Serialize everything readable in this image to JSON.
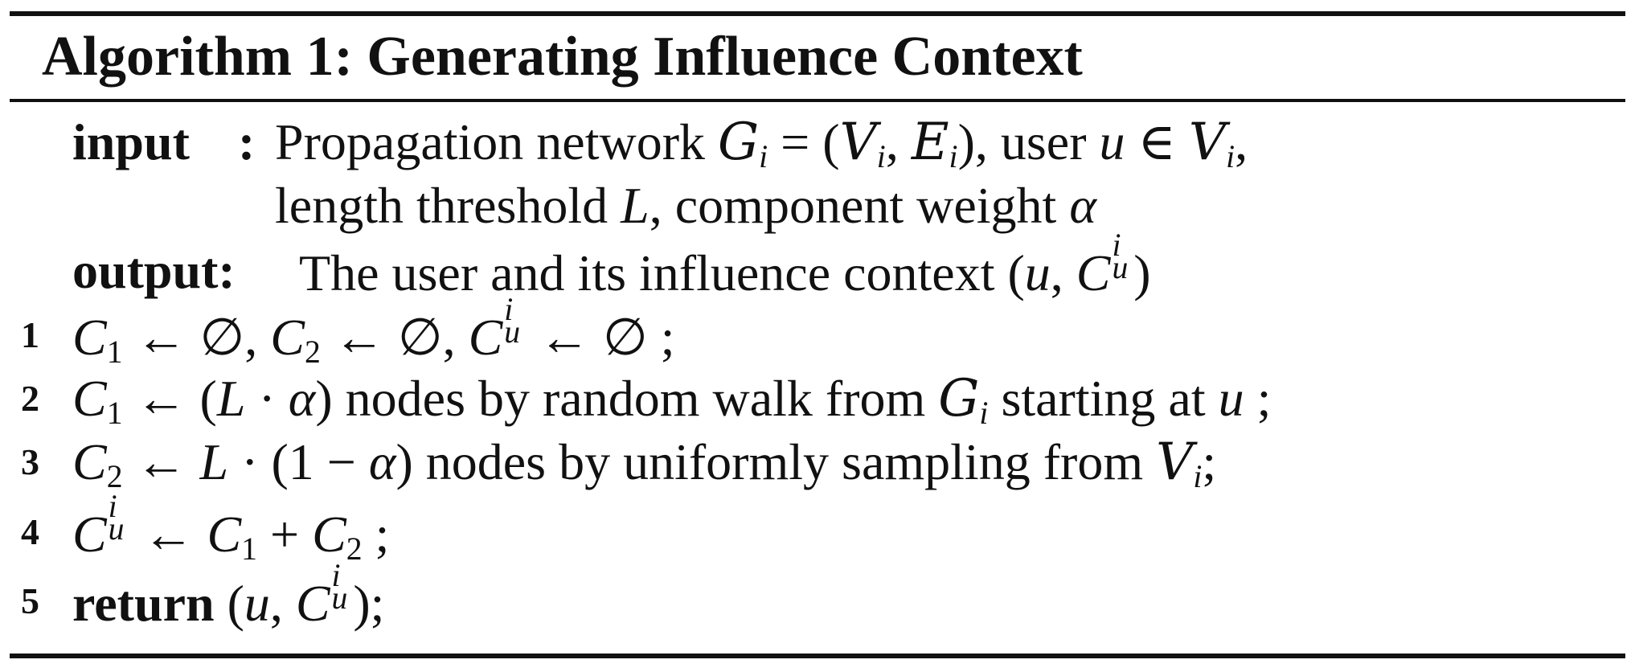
{
  "algorithm": {
    "title": "Algorithm 1: Generating Influence Context",
    "input_label": "input",
    "input_colon": ":",
    "input_line1_text": "Propagation network",
    "input_line1_graph": "G",
    "input_line1_sub_i": "i",
    "input_line1_eq": "= (",
    "input_line1_V": "V",
    "input_line1_comma": ",",
    "input_line1_E": "E",
    "input_line1_close": "), user",
    "input_line1_u": "u",
    "input_line1_in": "∈",
    "input_line1_end": ",",
    "input_line2_a": "length threshold",
    "input_line2_L": "L",
    "input_line2_b": ", component weight",
    "input_line2_alpha": "α",
    "output_label": "output:",
    "output_text": "The user and its influence context",
    "output_open": "(",
    "output_u": "u",
    "output_C": "C",
    "output_sup": "i",
    "output_sub": "u",
    "output_close": ")",
    "steps": [
      {
        "no": "1"
      },
      {
        "no": "2"
      },
      {
        "no": "3"
      },
      {
        "no": "4"
      },
      {
        "no": "5"
      }
    ],
    "step1": {
      "C": "C",
      "one": "1",
      "two": "2",
      "arrow": "←",
      "empty": "∅",
      "sep": ",",
      "i": "i",
      "u": "u",
      "end": ";"
    },
    "step2": {
      "C": "C",
      "one": "1",
      "arrow": "←",
      "open": "(",
      "L": "L",
      "dot": "·",
      "alpha": "α",
      "close": ")",
      "text_a": "nodes by random walk from",
      "G": "G",
      "i": "i",
      "text_b": "starting at",
      "u": "u",
      "end": ";"
    },
    "step3": {
      "C": "C",
      "two": "2",
      "arrow": "←",
      "L": "L",
      "dot": "·",
      "open": "(1 −",
      "alpha": "α",
      "close": ")",
      "text_a": "nodes by uniformly sampling from",
      "V": "V",
      "i": "i",
      "end": ";"
    },
    "step4": {
      "C": "C",
      "i": "i",
      "u": "u",
      "arrow": "←",
      "one": "1",
      "plus": "+",
      "two": "2",
      "end": ";"
    },
    "step5": {
      "keyword": "return",
      "open": "(",
      "u": "u",
      "comma": ",",
      "C": "C",
      "i": "i",
      "sub_u": "u",
      "close": ");"
    }
  }
}
